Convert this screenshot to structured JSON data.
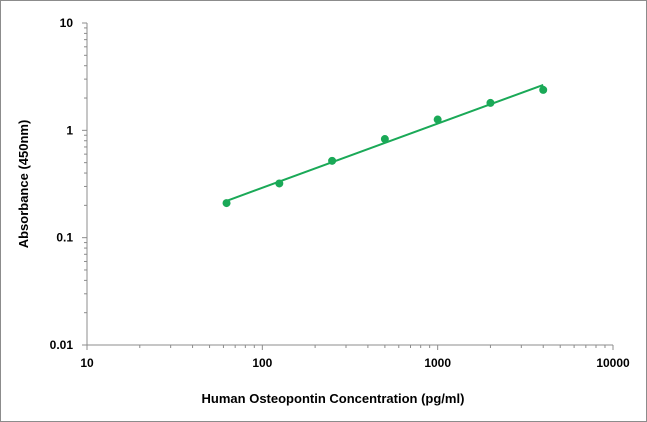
{
  "chart_data": {
    "type": "scatter",
    "title": "",
    "xlabel": "Human Osteopontin Concentration (pg/ml)",
    "ylabel": "Absorbance (450nm)",
    "x_scale": "log",
    "y_scale": "log",
    "xlim": [
      10,
      10000
    ],
    "ylim": [
      0.01,
      10
    ],
    "x_ticks": [
      "10",
      "100",
      "1000",
      "10000"
    ],
    "y_ticks": [
      "0.01",
      "0.1",
      "1",
      "10"
    ],
    "grid": false,
    "legend": "none",
    "series": [
      {
        "x": [
          62.5,
          125,
          250,
          500,
          1000,
          2000,
          4000
        ],
        "y": [
          0.21,
          0.32,
          0.52,
          0.83,
          1.26,
          1.8,
          2.38
        ],
        "marker": "circle",
        "color": "#1aa957"
      }
    ],
    "fit_line": {
      "type": "power",
      "x": [
        62.5,
        4000
      ],
      "y": [
        0.22,
        2.65
      ],
      "color": "#1aa957"
    }
  }
}
